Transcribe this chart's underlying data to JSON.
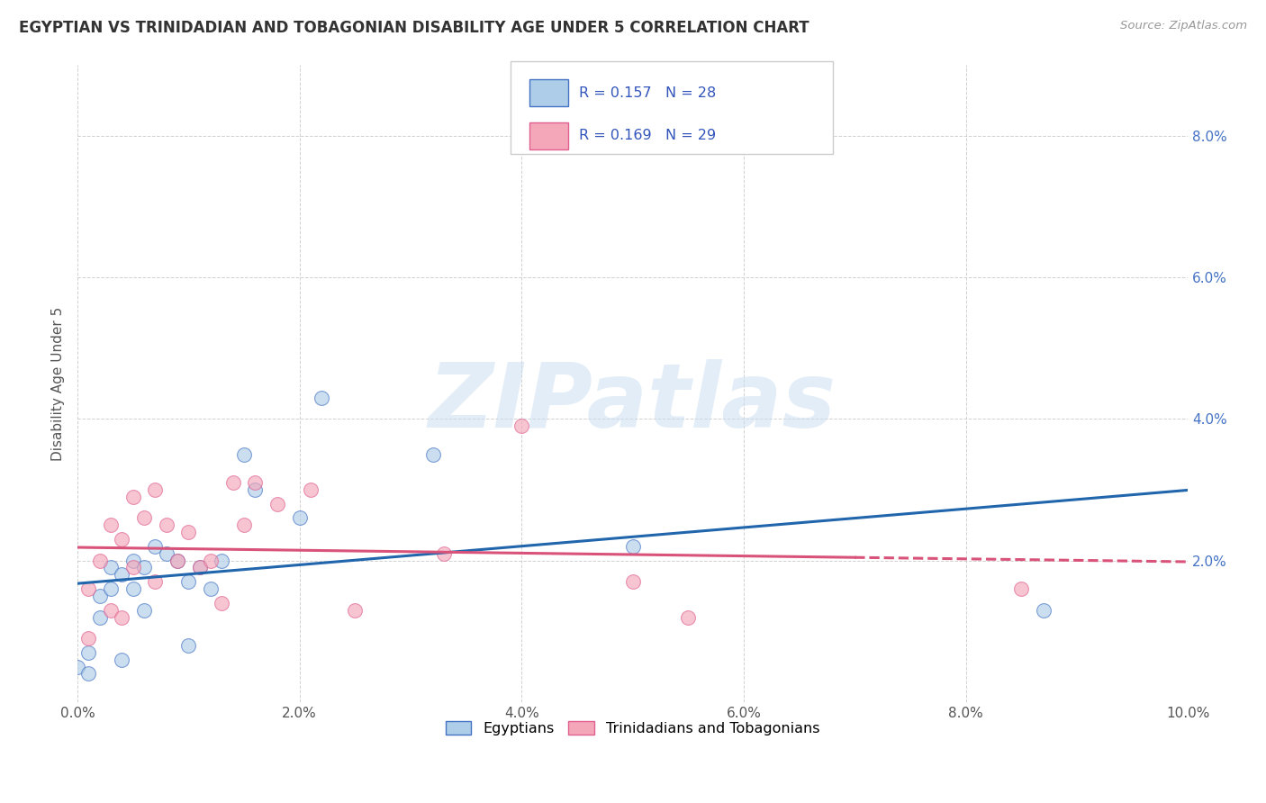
{
  "title": "EGYPTIAN VS TRINIDADIAN AND TOBAGONIAN DISABILITY AGE UNDER 5 CORRELATION CHART",
  "source": "Source: ZipAtlas.com",
  "ylabel": "Disability Age Under 5",
  "xlim": [
    0.0,
    0.1
  ],
  "ylim": [
    0.0,
    0.09
  ],
  "x_ticks": [
    0.0,
    0.02,
    0.04,
    0.06,
    0.08,
    0.1
  ],
  "y_ticks": [
    0.0,
    0.02,
    0.04,
    0.06,
    0.08
  ],
  "x_tick_labels": [
    "0.0%",
    "2.0%",
    "4.0%",
    "6.0%",
    "8.0%",
    "10.0%"
  ],
  "y_tick_labels": [
    "",
    "2.0%",
    "4.0%",
    "6.0%",
    "8.0%"
  ],
  "legend_R_N": [
    {
      "R": "0.157",
      "N": "28",
      "face_color": "#aecde8",
      "edge_color": "#4472c4"
    },
    {
      "R": "0.169",
      "N": "29",
      "face_color": "#f4a7b9",
      "edge_color": "#e06090"
    }
  ],
  "egyptian_face": "#aecde8",
  "egyptian_edge": "#4472c4",
  "trinidadian_face": "#f4a7b9",
  "trinidadian_edge": "#e06090",
  "trend_egyptian_color": "#2166ac",
  "trend_trinidadian_color": "#d9527a",
  "background_color": "#ffffff",
  "grid_color": "#cccccc",
  "egyptians_x": [
    0.0,
    0.001,
    0.001,
    0.002,
    0.002,
    0.003,
    0.003,
    0.004,
    0.004,
    0.005,
    0.005,
    0.006,
    0.006,
    0.007,
    0.008,
    0.009,
    0.01,
    0.01,
    0.011,
    0.012,
    0.013,
    0.015,
    0.016,
    0.02,
    0.022,
    0.032,
    0.05,
    0.087
  ],
  "egyptians_y": [
    0.005,
    0.004,
    0.007,
    0.015,
    0.012,
    0.016,
    0.019,
    0.018,
    0.006,
    0.016,
    0.02,
    0.019,
    0.013,
    0.022,
    0.021,
    0.02,
    0.017,
    0.008,
    0.019,
    0.016,
    0.02,
    0.035,
    0.03,
    0.026,
    0.043,
    0.035,
    0.022,
    0.013
  ],
  "trinidadians_x": [
    0.001,
    0.001,
    0.002,
    0.003,
    0.003,
    0.004,
    0.004,
    0.005,
    0.005,
    0.006,
    0.007,
    0.007,
    0.008,
    0.009,
    0.01,
    0.011,
    0.012,
    0.013,
    0.014,
    0.015,
    0.016,
    0.018,
    0.021,
    0.025,
    0.033,
    0.04,
    0.05,
    0.055,
    0.085
  ],
  "trinidadians_y": [
    0.009,
    0.016,
    0.02,
    0.013,
    0.025,
    0.012,
    0.023,
    0.019,
    0.029,
    0.026,
    0.017,
    0.03,
    0.025,
    0.02,
    0.024,
    0.019,
    0.02,
    0.014,
    0.031,
    0.025,
    0.031,
    0.028,
    0.03,
    0.013,
    0.021,
    0.039,
    0.017,
    0.012,
    0.016
  ],
  "marker_size": 130,
  "marker_alpha": 0.65,
  "trend_linewidth": 2.2,
  "watermark_text": "ZIPatlas",
  "watermark_color": "#c8ddf0",
  "watermark_alpha": 0.5,
  "watermark_fontsize": 72
}
